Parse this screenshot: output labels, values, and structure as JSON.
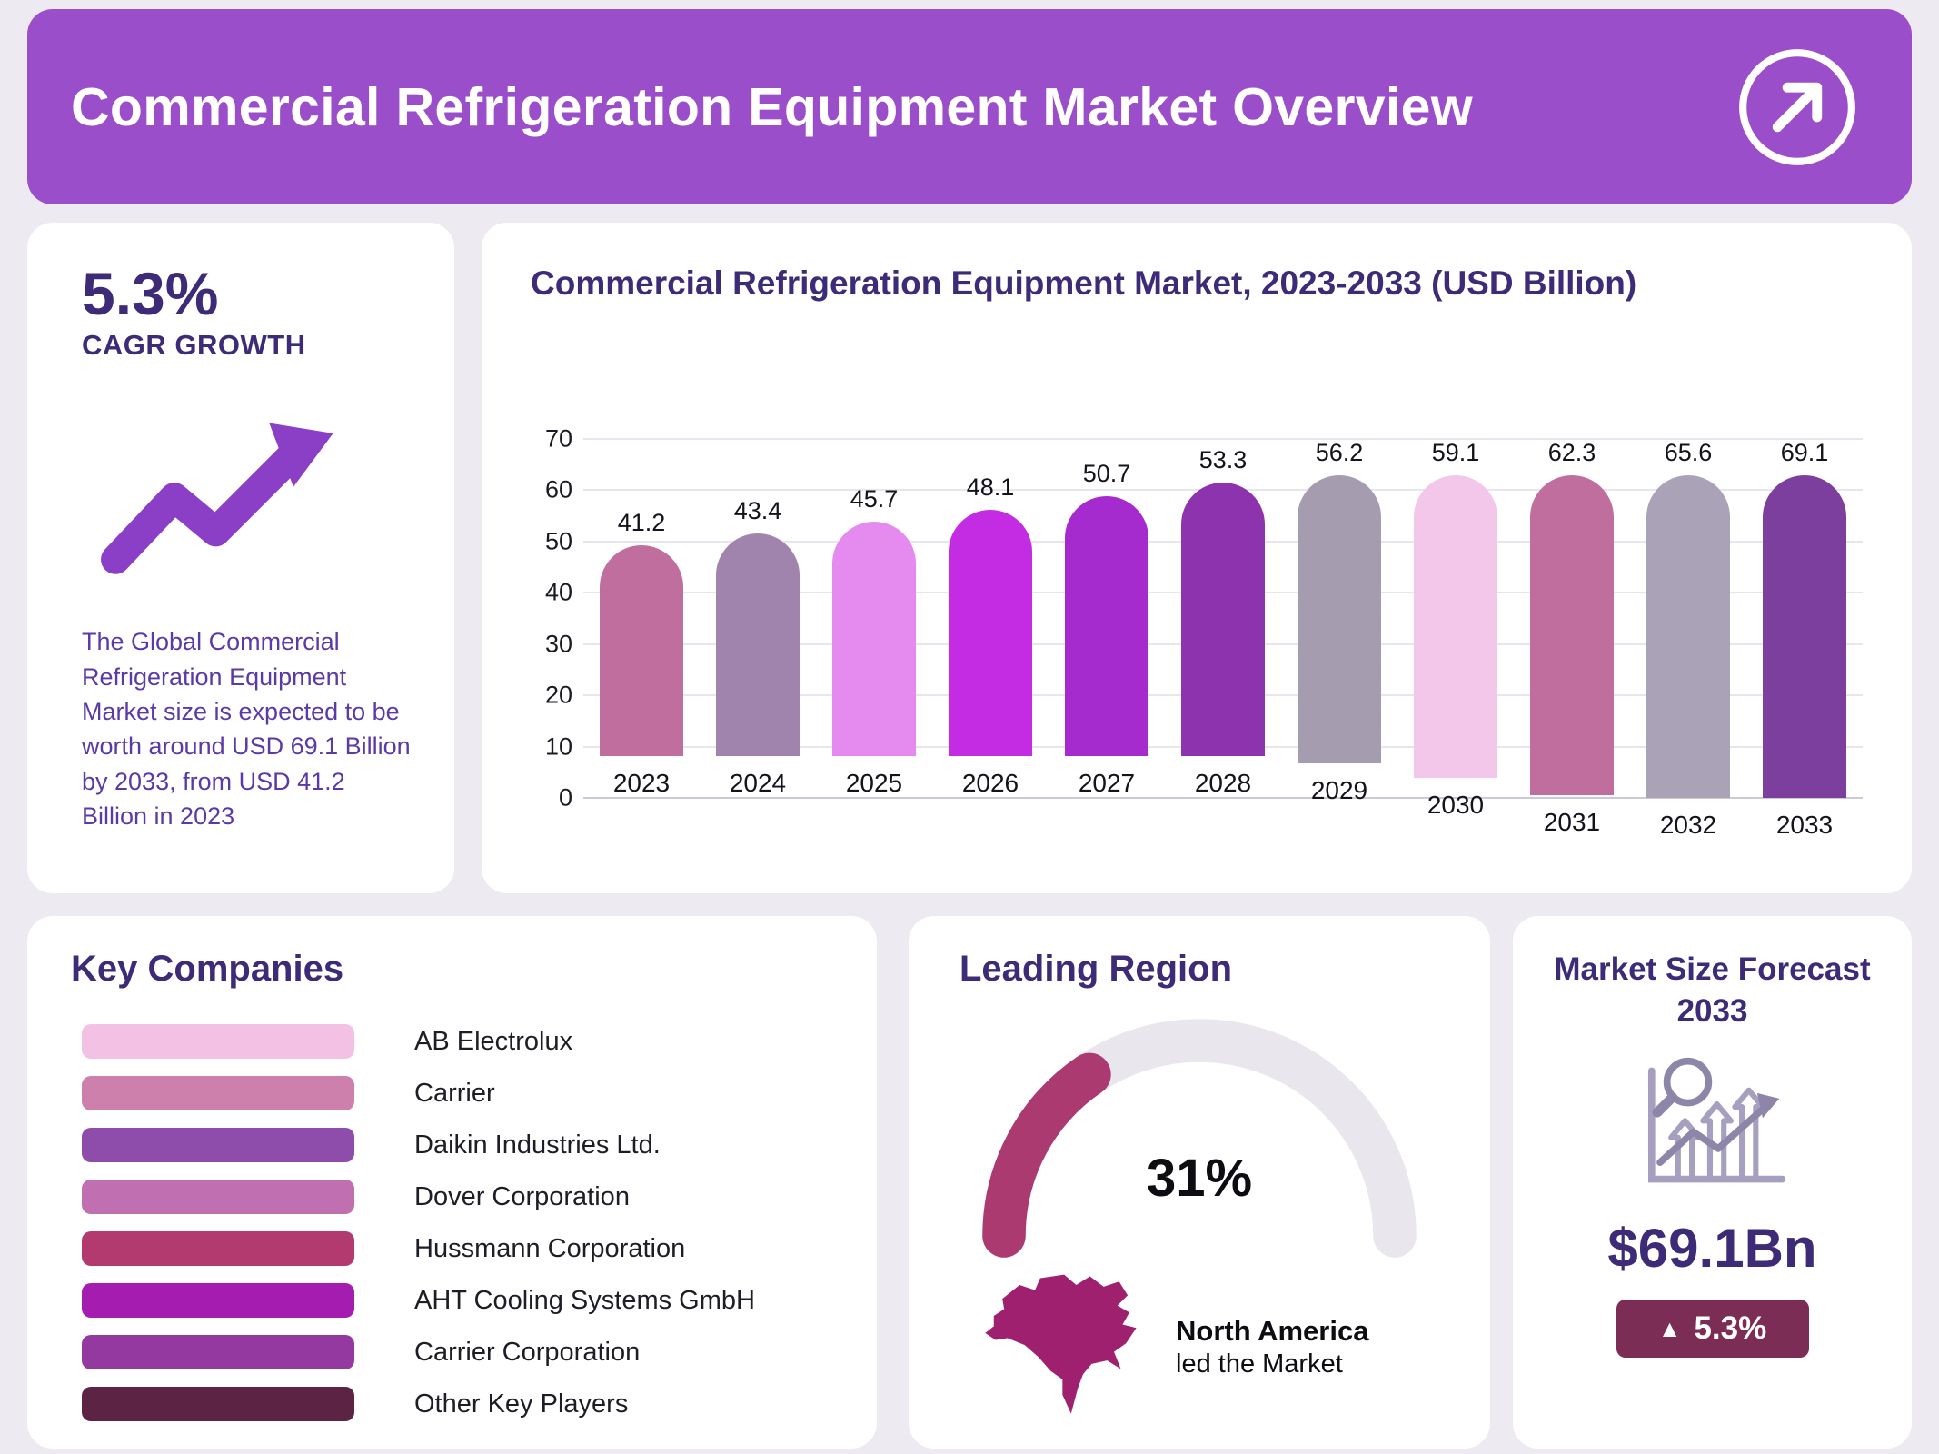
{
  "colors": {
    "page_bg": "#edebf1",
    "header_bg": "#9b4ec9",
    "indigo": "#3e2b78",
    "body_purple": "#5b3aa8",
    "arrow_purple": "#8b3fc6",
    "gauge_track": "#e9e6ee",
    "gauge_fill": "#aa3a6f",
    "map_magenta": "#a02070",
    "badge_maroon": "#7c2d55",
    "icon_gray": "#a79fc0",
    "icon_purple": "#8d86a8"
  },
  "header": {
    "title": "Commercial Refrigeration Equipment Market Overview"
  },
  "cagr_card": {
    "value": "5.3%",
    "label": "CAGR GROWTH",
    "description": "The Global Commercial Refrigeration Equipment Market size is expected to be worth around USD 69.1 Billion by 2033, from USD 41.2 Billion in 2023"
  },
  "chart_card": {
    "title": "Commercial Refrigeration Equipment Market, 2023-2033 (USD Billion)"
  },
  "chart_data": {
    "type": "bar",
    "title": "Commercial Refrigeration Equipment Market, 2023-2033 (USD Billion)",
    "categories": [
      "2023",
      "2024",
      "2025",
      "2026",
      "2027",
      "2028",
      "2029",
      "2030",
      "2031",
      "2032",
      "2033"
    ],
    "values": [
      41.2,
      43.4,
      45.7,
      48.1,
      50.7,
      53.3,
      56.2,
      59.1,
      62.3,
      65.6,
      69.1
    ],
    "bar_colors": [
      "#c06e9e",
      "#a184ad",
      "#e58bf0",
      "#c32ce2",
      "#a62bce",
      "#8d33ae",
      "#a59daf",
      "#f3c7e9",
      "#c06e9e",
      "#aaa3b7",
      "#7d3f9e"
    ],
    "xlabel": "",
    "ylabel": "",
    "ylim": [
      0,
      70
    ],
    "ytick_step": 10,
    "grid": true,
    "legend": false
  },
  "key_companies": {
    "title": "Key Companies",
    "items": [
      {
        "label": "AB Electrolux",
        "color": "#f2c1e4"
      },
      {
        "label": "Carrier",
        "color": "#cd80ab"
      },
      {
        "label": "Daikin Industries Ltd.",
        "color": "#8e4cab"
      },
      {
        "label": "Dover Corporation",
        "color": "#c06fb0"
      },
      {
        "label": "Hussmann Corporation",
        "color": "#b23a6e"
      },
      {
        "label": "AHT Cooling Systems GmbH",
        "color": "#a51cb0"
      },
      {
        "label": "Carrier Corporation",
        "color": "#93399f"
      },
      {
        "label": "Other Key Players",
        "color": "#5c2345"
      }
    ]
  },
  "leading_region": {
    "title": "Leading Region",
    "percent": "31%",
    "percent_value": 31,
    "region_name": "North America",
    "region_caption": "led the Market"
  },
  "market_size": {
    "title": "Market Size Forecast 2033",
    "value": "$69.1Bn",
    "growth_badge": "5.3%",
    "up_triangle": "▲"
  }
}
